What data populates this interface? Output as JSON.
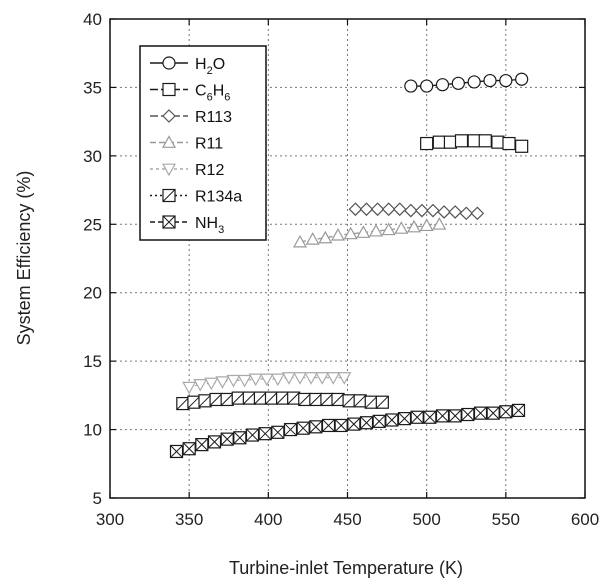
{
  "chart_data": {
    "type": "scatter",
    "xlabel": "Turbine-inlet Temperature (K)",
    "ylabel": "System Efficiency (%)",
    "xlim": [
      300,
      600
    ],
    "ylim": [
      5,
      40
    ],
    "xticks": [
      300,
      350,
      400,
      450,
      500,
      550,
      600
    ],
    "yticks": [
      5,
      10,
      15,
      20,
      25,
      30,
      35,
      40
    ],
    "grid": true,
    "legend_position": "top-left",
    "series": [
      {
        "name": "H2O",
        "label_main": "H",
        "label_sub": "2",
        "label_tail": "O",
        "marker": "circle",
        "color": "#1a1a1a",
        "dash": "",
        "x": [
          490,
          500,
          510,
          520,
          530,
          540,
          550,
          560
        ],
        "y": [
          35.1,
          35.1,
          35.2,
          35.3,
          35.4,
          35.5,
          35.5,
          35.6
        ]
      },
      {
        "name": "C6H6",
        "label_main": "C",
        "label_sub": "6",
        "label_tail": "H",
        "label_sub2": "6",
        "marker": "square",
        "color": "#1a1a1a",
        "dash": "8,3",
        "x": [
          500,
          508,
          515,
          522,
          530,
          537,
          545,
          552,
          560
        ],
        "y": [
          30.9,
          31.0,
          31.0,
          31.1,
          31.1,
          31.1,
          31.0,
          30.9,
          30.7
        ]
      },
      {
        "name": "R113",
        "marker": "diamond",
        "color": "#555555",
        "dash": "8,3",
        "x": [
          455,
          462,
          469,
          476,
          483,
          490,
          497,
          504,
          511,
          518,
          525,
          532
        ],
        "y": [
          26.1,
          26.1,
          26.1,
          26.1,
          26.1,
          26.0,
          26.0,
          26.0,
          25.9,
          25.9,
          25.8,
          25.8
        ]
      },
      {
        "name": "R11",
        "marker": "triangle-up",
        "color": "#999999",
        "dash": "6,3",
        "x": [
          420,
          428,
          436,
          444,
          452,
          460,
          468,
          476,
          484,
          492,
          500,
          508
        ],
        "y": [
          23.7,
          23.9,
          24.0,
          24.2,
          24.3,
          24.4,
          24.5,
          24.6,
          24.7,
          24.8,
          24.9,
          25.0
        ]
      },
      {
        "name": "R12",
        "marker": "triangle-down",
        "color": "#aaaaaa",
        "dash": "3,3",
        "x": [
          350,
          357,
          364,
          371,
          378,
          385,
          392,
          399,
          406,
          413,
          420,
          427,
          434,
          441,
          448
        ],
        "y": [
          13.1,
          13.3,
          13.4,
          13.5,
          13.6,
          13.6,
          13.7,
          13.7,
          13.7,
          13.8,
          13.8,
          13.8,
          13.8,
          13.8,
          13.8
        ]
      },
      {
        "name": "R134a",
        "marker": "square-slash",
        "color": "#1a1a1a",
        "dash": "2,3",
        "x": [
          346,
          353,
          360,
          367,
          374,
          381,
          388,
          395,
          402,
          409,
          416,
          423,
          430,
          437,
          444,
          451,
          458,
          465,
          472
        ],
        "y": [
          11.9,
          12.0,
          12.1,
          12.2,
          12.2,
          12.3,
          12.3,
          12.3,
          12.3,
          12.3,
          12.3,
          12.2,
          12.2,
          12.2,
          12.2,
          12.1,
          12.1,
          12.0,
          12.0
        ]
      },
      {
        "name": "NH3",
        "label_main": "NH",
        "label_sub": "3",
        "marker": "square-x",
        "color": "#1a1a1a",
        "dash": "5,3",
        "x": [
          342,
          350,
          358,
          366,
          374,
          382,
          390,
          398,
          406,
          414,
          422,
          430,
          438,
          446,
          454,
          462,
          470,
          478,
          486,
          494,
          502,
          510,
          518,
          526,
          534,
          542,
          550,
          558
        ],
        "y": [
          8.4,
          8.6,
          8.9,
          9.1,
          9.3,
          9.4,
          9.6,
          9.7,
          9.8,
          10.0,
          10.1,
          10.2,
          10.3,
          10.3,
          10.4,
          10.5,
          10.6,
          10.7,
          10.8,
          10.9,
          10.9,
          11.0,
          11.0,
          11.1,
          11.2,
          11.2,
          11.3,
          11.4
        ]
      }
    ]
  }
}
